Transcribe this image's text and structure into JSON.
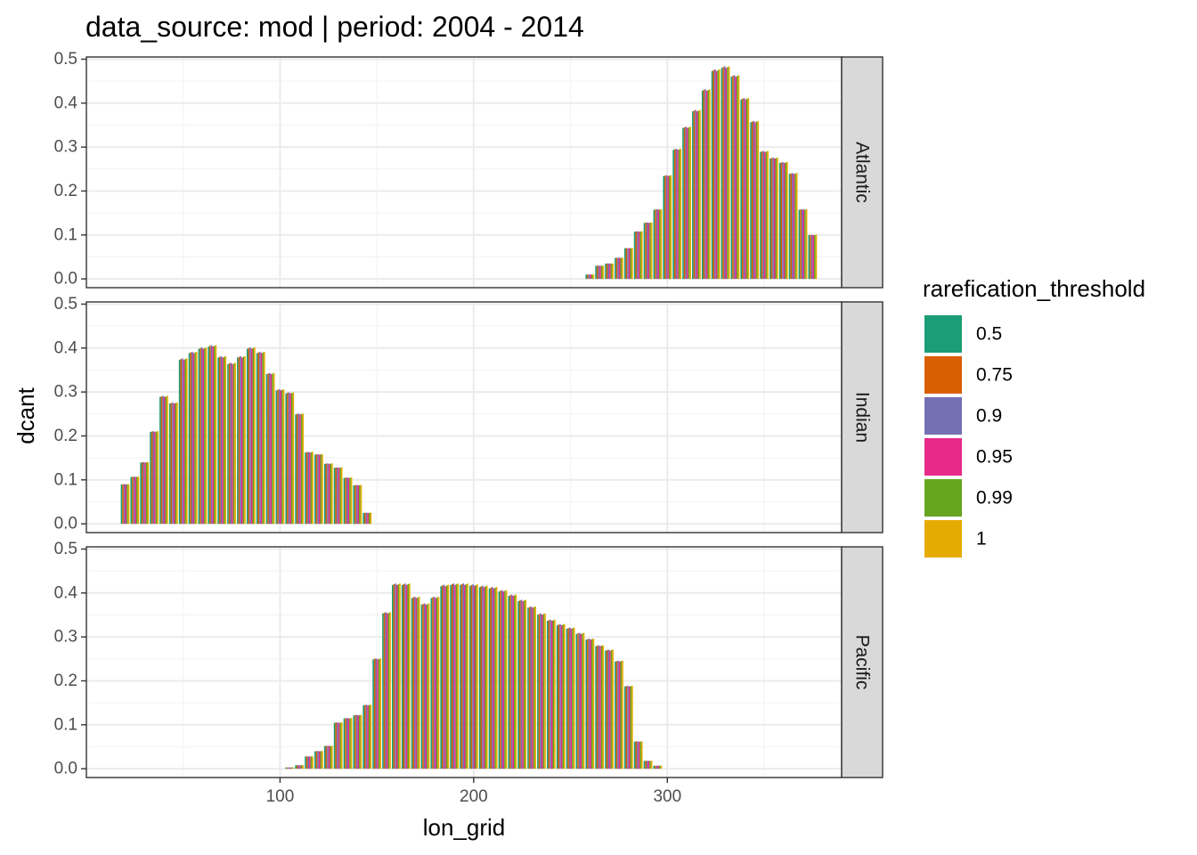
{
  "title": "data_source: mod | period: 2004 - 2014",
  "chart_data": {
    "type": "bar",
    "title": "data_source: mod | period: 2004 - 2014",
    "xlabel": "lon_grid",
    "ylabel": "dcant",
    "xlim": [
      0,
      390
    ],
    "ylim": [
      -0.02,
      0.505
    ],
    "x_ticks": [
      "100",
      "200",
      "300"
    ],
    "y_ticks": [
      "0.0",
      "0.1",
      "0.2",
      "0.3",
      "0.4",
      "0.5"
    ],
    "grid": true,
    "facet_variable": "basin",
    "legend": {
      "title": "rarefication_threshold",
      "position": "right",
      "entries": [
        {
          "label": "0.5",
          "color": "#1B9E77"
        },
        {
          "label": "0.75",
          "color": "#D95F02"
        },
        {
          "label": "0.9",
          "color": "#7570B3"
        },
        {
          "label": "0.95",
          "color": "#E7298A"
        },
        {
          "label": "0.99",
          "color": "#66A61E"
        },
        {
          "label": "1",
          "color": "#E6AB02"
        }
      ]
    },
    "panels": [
      {
        "label": "Atlantic",
        "x": [
          260,
          265,
          270,
          275,
          280,
          285,
          290,
          295,
          300,
          305,
          310,
          315,
          320,
          325,
          330,
          335,
          340,
          345,
          350,
          355,
          360,
          365,
          370,
          375
        ],
        "values": [
          0.01,
          0.03,
          0.035,
          0.048,
          0.07,
          0.108,
          0.128,
          0.158,
          0.235,
          0.295,
          0.345,
          0.383,
          0.43,
          0.475,
          0.482,
          0.462,
          0.41,
          0.358,
          0.29,
          0.275,
          0.265,
          0.24,
          0.158,
          0.1
        ]
      },
      {
        "label": "Indian",
        "x": [
          20,
          25,
          30,
          35,
          40,
          45,
          50,
          55,
          60,
          65,
          70,
          75,
          80,
          85,
          90,
          95,
          100,
          105,
          110,
          115,
          120,
          125,
          130,
          135,
          140,
          145
        ],
        "values": [
          0.09,
          0.107,
          0.14,
          0.21,
          0.29,
          0.275,
          0.375,
          0.39,
          0.4,
          0.405,
          0.38,
          0.365,
          0.38,
          0.4,
          0.39,
          0.342,
          0.305,
          0.298,
          0.25,
          0.163,
          0.158,
          0.137,
          0.128,
          0.105,
          0.088,
          0.025
        ]
      },
      {
        "label": "Pacific",
        "x": [
          105,
          110,
          115,
          120,
          125,
          130,
          135,
          140,
          145,
          150,
          155,
          160,
          165,
          170,
          175,
          180,
          185,
          190,
          195,
          200,
          205,
          210,
          215,
          220,
          225,
          230,
          235,
          240,
          245,
          250,
          255,
          260,
          265,
          270,
          275,
          280,
          285,
          290,
          295
        ],
        "values": [
          0.003,
          0.008,
          0.028,
          0.04,
          0.052,
          0.105,
          0.115,
          0.122,
          0.145,
          0.25,
          0.355,
          0.42,
          0.42,
          0.39,
          0.375,
          0.39,
          0.417,
          0.42,
          0.42,
          0.418,
          0.415,
          0.412,
          0.405,
          0.395,
          0.383,
          0.368,
          0.352,
          0.338,
          0.328,
          0.32,
          0.308,
          0.295,
          0.28,
          0.27,
          0.245,
          0.188,
          0.062,
          0.018,
          0.007
        ]
      }
    ]
  }
}
